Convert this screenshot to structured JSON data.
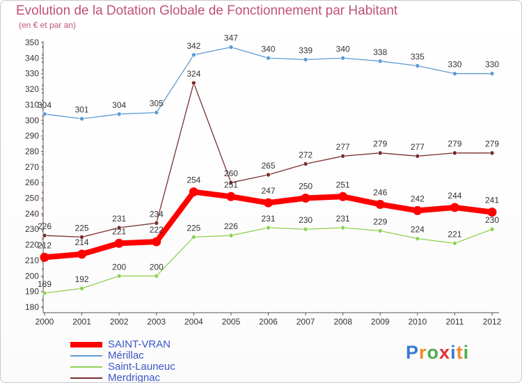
{
  "chart_data": {
    "type": "line",
    "title": "Evolution de la Dotation Globale de Fonctionnement par Habitant",
    "subtitle": "(en € et par an)",
    "xlabel": "",
    "ylabel": "",
    "ylim": [
      180,
      350
    ],
    "y_ticks": [
      180,
      190,
      200,
      210,
      220,
      230,
      240,
      250,
      260,
      270,
      280,
      290,
      300,
      310,
      320,
      330,
      340,
      350
    ],
    "x": [
      "2000",
      "2001",
      "2002",
      "2003",
      "2004",
      "2005",
      "2006",
      "2007",
      "2008",
      "2009",
      "2010",
      "2011",
      "2012"
    ],
    "grid": false,
    "legend_position": "bottom-left",
    "series": [
      {
        "name": "Mérillac",
        "color": "#5b9bd5",
        "values": [
          304,
          301,
          304,
          305,
          342,
          347,
          340,
          339,
          340,
          338,
          335,
          330,
          330
        ]
      },
      {
        "name": "Merdrignac",
        "color": "#7a2e2e",
        "values": [
          226,
          225,
          231,
          234,
          324,
          260,
          265,
          272,
          277,
          279,
          277,
          279,
          279
        ]
      },
      {
        "name": "Saint-Launeuc",
        "color": "#8fd14f",
        "values": [
          189,
          192,
          200,
          200,
          225,
          226,
          231,
          230,
          231,
          229,
          224,
          221,
          230
        ]
      },
      {
        "name": "SAINT-VRAN",
        "color": "#ff0000",
        "values": [
          212,
          214,
          221,
          222,
          254,
          251,
          247,
          250,
          251,
          246,
          242,
          244,
          241
        ]
      }
    ],
    "legend": [
      "SAINT-VRAN",
      "Mérillac",
      "Saint-Launeuc",
      "Merdrignac"
    ]
  },
  "branding": {
    "logo_letters": [
      "P",
      "r",
      "o",
      "x",
      "i",
      "t",
      "i"
    ],
    "logo_colors": [
      "#3a7bd5",
      "#f08a24",
      "#4cae4c",
      "#e03131",
      "#3a7bd5",
      "#f08a24",
      "#4cae4c"
    ]
  }
}
